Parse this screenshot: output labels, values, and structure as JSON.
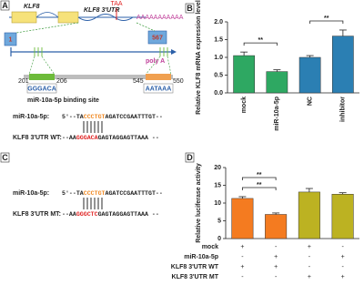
{
  "chart_data": [
    {
      "type": "bar",
      "panel": "B",
      "ylabel": "Relative KLF8 mRNA expression level",
      "categories": [
        "mock",
        "miR-10a-5p",
        "NC",
        "inhibitor"
      ],
      "values": [
        1.05,
        0.6,
        1.0,
        1.6
      ],
      "errors": [
        0.1,
        0.05,
        0.05,
        0.17
      ],
      "colors": [
        "#2ea862",
        "#2ea862",
        "#2b7fb3",
        "#2b7fb3"
      ],
      "ylim": [
        0,
        2
      ],
      "yticks": [
        {
          "value": 0,
          "label": "0.0"
        },
        {
          "value": 0.5,
          "label": "0.5"
        },
        {
          "value": 1,
          "label": "1.0"
        },
        {
          "value": 1.5,
          "label": "1.5"
        },
        {
          "value": 2,
          "label": "2.0"
        }
      ],
      "annotations": [
        {
          "label": "**",
          "bars": [
            0,
            1
          ]
        },
        {
          "label": "**",
          "bars": [
            2,
            3
          ]
        }
      ]
    },
    {
      "type": "bar",
      "panel": "D",
      "ylabel": "Relative luciferase activity",
      "categories": [
        null,
        null,
        null,
        null
      ],
      "values": [
        11.3,
        6.8,
        13.1,
        12.5
      ],
      "errors": [
        0.5,
        0.4,
        1.0,
        0.4
      ],
      "colors": [
        "#f47b20",
        "#f47b20",
        "#bcb222",
        "#bcb222"
      ],
      "ylim": [
        0,
        20
      ],
      "yticks": [
        0,
        5,
        10,
        15,
        20
      ],
      "annotations": [
        {
          "label": "**",
          "bars": [
            0,
            1
          ]
        },
        {
          "label": "**",
          "bars": [
            0,
            1
          ]
        }
      ],
      "conditions": [
        {
          "label": "mock",
          "signs": [
            "+",
            "-",
            "+",
            "-"
          ]
        },
        {
          "label": "miR-10a-5p",
          "signs": [
            "-",
            "+",
            "-",
            "+"
          ]
        },
        {
          "label": "KLF8 3'UTR WT",
          "signs": [
            "+",
            "+",
            "-",
            "-"
          ]
        },
        {
          "label": "KLF8 3'UTR MT",
          "signs": [
            "-",
            "-",
            "+",
            "+"
          ]
        }
      ]
    }
  ],
  "panel_a": {
    "letter": "A",
    "gene": "KLF8",
    "utr": "KLF8 3'UTR",
    "stop": "TAA",
    "polya_tail": "AAAAAAAAAAA",
    "start_pos": "1",
    "end_pos": "567",
    "polya": "poly A",
    "site1_start": "201",
    "site1_end": "206",
    "site1_seq": "GGGACA",
    "site2_start": "545",
    "site2_end": "550",
    "site2_seq": "AATAAA",
    "site_label": "miR-10a-5p binding site",
    "mir_label": "miR-10a-5p:",
    "mir_seq": [
      "5'--TA",
      "CCCTGT",
      "AGATCCGAATTTGT--"
    ],
    "utr_label": "KLF8 3'UTR WT:",
    "utr_seq": [
      "--AA",
      "GGGACA",
      "GAGTAGGAGTTAAA --"
    ]
  },
  "panel_b": {
    "letter": "B"
  },
  "panel_c": {
    "letter": "C",
    "mir_label": "miR-10a-5p:",
    "mir_seq": [
      "5'--TA",
      "CCCTGT",
      "AGATCCGAATTTGT--"
    ],
    "utr_label": "KLF8 3'UTR MT:",
    "utr_seq": [
      "--AA",
      "GGGCTC",
      "GAGTAGGAGTTAAA --"
    ]
  },
  "panel_d": {
    "letter": "D"
  }
}
